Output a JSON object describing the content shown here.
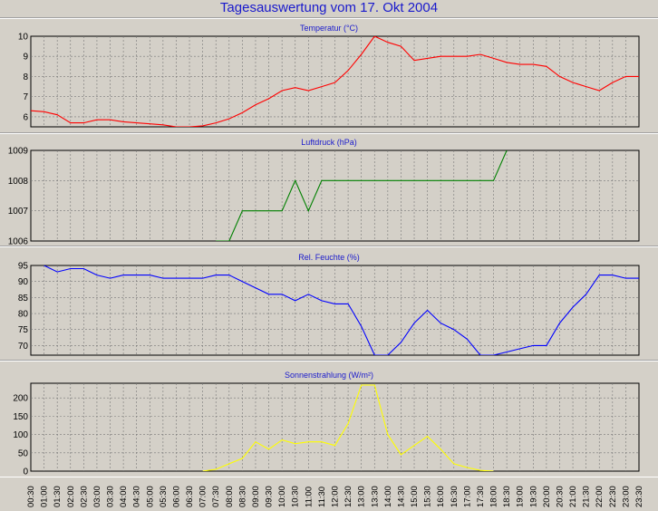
{
  "title": "Tagesauswertung vom 17. Okt 2004",
  "x_ticks": [
    "00:30",
    "01:00",
    "01:30",
    "02:00",
    "02:30",
    "03:00",
    "03:30",
    "04:00",
    "04:30",
    "05:00",
    "05:30",
    "06:00",
    "06:30",
    "07:00",
    "07:30",
    "08:00",
    "08:30",
    "09:00",
    "09:30",
    "10:00",
    "10:30",
    "11:00",
    "11:30",
    "12:00",
    "12:30",
    "13:00",
    "13:30",
    "14:00",
    "14:30",
    "15:00",
    "15:30",
    "16:00",
    "16:30",
    "17:00",
    "17:30",
    "18:00",
    "18:30",
    "19:00",
    "19:30",
    "20:00",
    "20:30",
    "21:00",
    "21:30",
    "22:00",
    "22:30",
    "23:00",
    "23:30"
  ],
  "chart_data": [
    {
      "type": "line",
      "title": "Temperatur (°C)",
      "color": "#ff0000",
      "ylim": [
        5.5,
        10
      ],
      "yticks": [
        6,
        7,
        8,
        9,
        10
      ],
      "grid": true,
      "x": [
        "00:30",
        "01:00",
        "01:30",
        "02:00",
        "02:30",
        "03:00",
        "03:30",
        "04:00",
        "04:30",
        "05:00",
        "05:30",
        "06:00",
        "06:30",
        "07:00",
        "07:30",
        "08:00",
        "08:30",
        "09:00",
        "09:30",
        "10:00",
        "10:30",
        "11:00",
        "11:30",
        "12:00",
        "12:30",
        "13:00",
        "13:30",
        "14:00",
        "14:30",
        "15:00",
        "15:30",
        "16:00",
        "16:30",
        "17:00",
        "17:30",
        "18:00",
        "18:30",
        "19:00",
        "19:30",
        "20:00",
        "20:30",
        "21:00",
        "21:30",
        "22:00",
        "22:30",
        "23:00",
        "23:30"
      ],
      "values": [
        6.3,
        6.25,
        6.1,
        5.7,
        5.7,
        5.85,
        5.85,
        5.75,
        5.7,
        5.65,
        5.6,
        5.5,
        5.5,
        5.55,
        5.7,
        5.9,
        6.2,
        6.6,
        6.9,
        7.3,
        7.45,
        7.3,
        7.5,
        7.7,
        8.3,
        9.1,
        10.0,
        9.7,
        9.5,
        8.8,
        8.9,
        9.0,
        9.0,
        9.0,
        9.1,
        8.9,
        8.7,
        8.6,
        8.6,
        8.5,
        8.0,
        7.7,
        7.5,
        7.3,
        7.7,
        8.0,
        8.0
      ]
    },
    {
      "type": "line",
      "title": "Luftdruck (hPa)",
      "color": "#008000",
      "ylim": [
        1006,
        1009
      ],
      "yticks": [
        1006,
        1007,
        1008,
        1009
      ],
      "grid": true,
      "x": [
        "07:30",
        "08:00",
        "08:30",
        "09:00",
        "09:30",
        "10:00",
        "10:30",
        "11:00",
        "11:30",
        "12:00",
        "12:30",
        "13:00",
        "13:30",
        "14:00",
        "14:30",
        "15:00",
        "15:30",
        "16:00",
        "16:30",
        "17:00",
        "17:30",
        "18:00",
        "18:30"
      ],
      "values": [
        1006,
        1006,
        1007,
        1007,
        1007,
        1007,
        1008,
        1007,
        1008,
        1008,
        1008,
        1008,
        1008,
        1008,
        1008,
        1008,
        1008,
        1008,
        1008,
        1008,
        1008,
        1008,
        1009
      ]
    },
    {
      "type": "line",
      "title": "Rel. Feuchte (%)",
      "color": "#0000ff",
      "ylim": [
        67,
        95
      ],
      "yticks": [
        70,
        75,
        80,
        85,
        90,
        95
      ],
      "grid": true,
      "x": [
        "01:00",
        "01:30",
        "02:00",
        "02:30",
        "03:00",
        "03:30",
        "04:00",
        "04:30",
        "05:00",
        "05:30",
        "06:00",
        "06:30",
        "07:00",
        "07:30",
        "08:00",
        "08:30",
        "09:00",
        "09:30",
        "10:00",
        "10:30",
        "11:00",
        "11:30",
        "12:00",
        "12:30",
        "13:00",
        "13:30",
        "14:00",
        "14:30",
        "15:00",
        "15:30",
        "16:00",
        "16:30",
        "17:00",
        "17:30",
        "18:00",
        "18:30",
        "19:00",
        "19:30",
        "20:00",
        "20:30",
        "21:00",
        "21:30",
        "22:00",
        "22:30",
        "23:00",
        "23:30"
      ],
      "values": [
        95,
        93,
        94,
        94,
        92,
        91,
        92,
        92,
        92,
        91,
        91,
        91,
        91,
        92,
        92,
        90,
        88,
        86,
        86,
        84,
        86,
        84,
        83,
        83,
        76,
        67,
        67,
        71,
        77,
        81,
        77,
        75,
        72,
        67,
        67,
        68,
        69,
        70,
        70,
        77,
        82,
        86,
        92,
        92,
        91,
        91
      ]
    },
    {
      "type": "line",
      "title": "Sonnenstrahlung (W/m²)",
      "color": "#ffff00",
      "ylim": [
        0,
        240
      ],
      "yticks": [
        0,
        50,
        100,
        150,
        200
      ],
      "grid": true,
      "x": [
        "07:00",
        "07:30",
        "08:00",
        "08:30",
        "09:00",
        "09:30",
        "10:00",
        "10:30",
        "11:00",
        "11:30",
        "12:00",
        "12:30",
        "13:00",
        "13:30",
        "14:00",
        "14:30",
        "15:00",
        "15:30",
        "16:00",
        "16:30",
        "17:00",
        "17:30",
        "18:00"
      ],
      "values": [
        0,
        5,
        20,
        35,
        80,
        60,
        85,
        75,
        80,
        80,
        70,
        130,
        235,
        235,
        100,
        45,
        70,
        95,
        60,
        20,
        10,
        2,
        0
      ]
    }
  ]
}
